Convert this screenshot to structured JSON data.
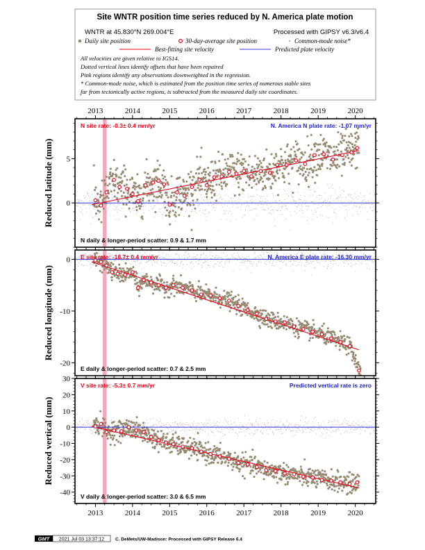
{
  "legend": {
    "title": "Site WNTR position time series reduced by N. America plate motion",
    "site_line": "WNTR at 45.830°N 269.004°E",
    "processing": "Processed with GIPSY v6.3/v6.4",
    "key_daily": "Daily site position",
    "key_avg": "30-day-average site position",
    "key_cmn": "Common-mode noise*",
    "key_fit": "Best-fitting site velocity",
    "key_plate": "Predicted plate velocity",
    "notes": [
      "All velocities are given relative to IGS14.",
      "Dotted vertical lines identify offsets that have been repaired",
      "Pink regions identify any observations downweighted in the regression.",
      "* Common-mode noise, which is estimated from the position time series of numerous stable sites",
      "far from tectonically active regions, is subtracted from the measured daily site coordinates."
    ],
    "colors": {
      "daily": "#978a72",
      "avg": "#e8001a",
      "cmn": "#b4b4b4",
      "fit": "#e8001a",
      "plate": "#3333dd",
      "pink": "#f2a8b8"
    }
  },
  "chart_data": [
    {
      "type": "scatter",
      "panel": "north",
      "ylabel": "Reduced latitude (mm)",
      "xlim": [
        2012.45,
        2020.55
      ],
      "ylim": [
        -5,
        9.5
      ],
      "yticks": [
        0,
        5
      ],
      "top_years": [
        "2013",
        "2014",
        "2015",
        "2016",
        "2017",
        "2018",
        "2019",
        "2020"
      ],
      "site_rate": "N site rate:  -0.3± 0.4 mm/yr",
      "plate_rate": "N. America N plate rate: -1.07 mm/yr",
      "scatter": "N daily & longer-period scatter:   0.9 &   1.7 mm",
      "fit_line": [
        [
          2012.9,
          -0.2
        ],
        [
          2020.1,
          5.9
        ]
      ],
      "plate_line_y": 0,
      "downweighted": [
        2013.2,
        2013.3
      ],
      "averages": [
        [
          2013.0,
          0.3
        ],
        [
          2013.15,
          -0.3
        ],
        [
          2013.3,
          1.2
        ],
        [
          2013.5,
          2.6
        ],
        [
          2013.65,
          1.8
        ],
        [
          2013.85,
          1.6
        ],
        [
          2014.0,
          1.0
        ],
        [
          2014.15,
          0.2
        ],
        [
          2014.35,
          2.0
        ],
        [
          2014.55,
          2.3
        ],
        [
          2014.7,
          2.5
        ],
        [
          2014.85,
          2.1
        ],
        [
          2015.0,
          -0.2
        ],
        [
          2015.2,
          1.2
        ],
        [
          2015.4,
          0.8
        ],
        [
          2015.6,
          1.8
        ],
        [
          2015.8,
          2.6
        ],
        [
          2016.0,
          2.0
        ],
        [
          2016.2,
          2.9
        ],
        [
          2016.4,
          3.0
        ],
        [
          2016.6,
          3.5
        ],
        [
          2016.8,
          3.3
        ],
        [
          2017.0,
          3.6
        ],
        [
          2017.2,
          3.0
        ],
        [
          2017.45,
          3.6
        ],
        [
          2017.7,
          3.4
        ],
        [
          2017.9,
          4.3
        ],
        [
          2018.15,
          4.3
        ],
        [
          2018.4,
          4.8
        ],
        [
          2018.65,
          4.4
        ],
        [
          2018.9,
          5.4
        ],
        [
          2019.15,
          5.5
        ],
        [
          2019.4,
          4.9
        ],
        [
          2019.65,
          5.4
        ],
        [
          2019.9,
          5.7
        ],
        [
          2020.05,
          6.2
        ]
      ],
      "noise_sd": 1.2,
      "cmn_sd": 0.9,
      "cmn_offset": 0
    },
    {
      "type": "scatter",
      "panel": "east",
      "ylabel": "Reduced longitude (mm)",
      "xlim": [
        2012.45,
        2020.55
      ],
      "ylim": [
        -22.5,
        1.8
      ],
      "yticks": [
        0,
        -10,
        -20
      ],
      "site_rate": "E site rate:  -18.7± 0.4 mm/yr",
      "plate_rate": "N. America E plate rate: -16.30 mm/yr",
      "scatter": "E daily & longer-period scatter:   0.7 &   2.5 mm",
      "fit_line": [
        [
          2012.9,
          -0.5
        ],
        [
          2020.1,
          -17.5
        ]
      ],
      "plate_line_y": 0,
      "downweighted": [
        2013.2,
        2013.3
      ],
      "averages": [
        [
          2013.0,
          -0.2
        ],
        [
          2013.15,
          -0.5
        ],
        [
          2013.3,
          -1.2
        ],
        [
          2013.45,
          -2.5
        ],
        [
          2013.6,
          -2.8
        ],
        [
          2013.8,
          -3.0
        ],
        [
          2014.0,
          -2.5
        ],
        [
          2014.15,
          -5.5
        ],
        [
          2014.3,
          -4.0
        ],
        [
          2014.5,
          -4.5
        ],
        [
          2014.7,
          -5.0
        ],
        [
          2014.9,
          -5.5
        ],
        [
          2015.1,
          -5.0
        ],
        [
          2015.35,
          -5.5
        ],
        [
          2015.6,
          -6.0
        ],
        [
          2015.85,
          -6.8
        ],
        [
          2016.1,
          -7.0
        ],
        [
          2016.35,
          -7.5
        ],
        [
          2016.6,
          -8.0
        ],
        [
          2016.85,
          -9.0
        ],
        [
          2017.1,
          -9.8
        ],
        [
          2017.35,
          -10.5
        ],
        [
          2017.6,
          -11.5
        ],
        [
          2017.85,
          -12.0
        ],
        [
          2018.1,
          -12.2
        ],
        [
          2018.35,
          -13.0
        ],
        [
          2018.6,
          -13.5
        ],
        [
          2018.85,
          -14.0
        ],
        [
          2019.1,
          -14.5
        ],
        [
          2019.35,
          -15.3
        ],
        [
          2019.6,
          -16.0
        ],
        [
          2019.85,
          -16.8
        ],
        [
          2020.1,
          -21.5
        ]
      ],
      "noise_sd": 0.8,
      "cmn_sd": 0.8,
      "cmn_offset": 0
    },
    {
      "type": "scatter",
      "panel": "vertical",
      "ylabel": "Reduced vertical (mm)",
      "xlim": [
        2012.45,
        2020.55
      ],
      "ylim": [
        -47,
        30
      ],
      "yticks": [
        30,
        20,
        10,
        0,
        -10,
        -20,
        -30,
        -40
      ],
      "bottom_years": [
        "2013",
        "2014",
        "2015",
        "2016",
        "2017",
        "2018",
        "2019",
        "2020"
      ],
      "site_rate": "V site rate:  -5.3± 0.7 mm/yr",
      "plate_rate": "Predicted vertical rate is zero",
      "scatter": "V daily & longer-period scatter:   3.0 &   6.5 mm",
      "fit_line": [
        [
          2012.9,
          0.5
        ],
        [
          2020.1,
          -37.5
        ]
      ],
      "plate_line_y": 0,
      "downweighted": [
        2013.2,
        2013.3
      ],
      "averages": [
        [
          2013.0,
          0.5
        ],
        [
          2013.15,
          2.0
        ],
        [
          2013.3,
          -3.0
        ],
        [
          2013.5,
          -2.0
        ],
        [
          2013.7,
          -2.5
        ],
        [
          2013.9,
          0.0
        ],
        [
          2014.1,
          -2.0
        ],
        [
          2014.3,
          -3.0
        ],
        [
          2014.5,
          -6.0
        ],
        [
          2014.7,
          -8.0
        ],
        [
          2014.9,
          -9.5
        ],
        [
          2015.1,
          -10.5
        ],
        [
          2015.35,
          -12.0
        ],
        [
          2015.6,
          -13.0
        ],
        [
          2015.85,
          -15.0
        ],
        [
          2016.1,
          -16.5
        ],
        [
          2016.35,
          -18.0
        ],
        [
          2016.6,
          -19.5
        ],
        [
          2016.85,
          -22.0
        ],
        [
          2017.1,
          -23.0
        ],
        [
          2017.35,
          -24.5
        ],
        [
          2017.6,
          -26.5
        ],
        [
          2017.85,
          -27.0
        ],
        [
          2018.1,
          -28.5
        ],
        [
          2018.35,
          -29.0
        ],
        [
          2018.6,
          -30.5
        ],
        [
          2018.85,
          -31.0
        ],
        [
          2019.1,
          -32.5
        ],
        [
          2019.35,
          -33.0
        ],
        [
          2019.6,
          -34.0
        ],
        [
          2019.85,
          -35.0
        ],
        [
          2020.05,
          -34.0
        ]
      ],
      "noise_sd": 3.0,
      "cmn_sd": 2.5,
      "cmn_offset": 0
    }
  ],
  "footer": {
    "logo": "GMT",
    "timestamp": "2021 Jul 03 13:37:12",
    "credit": "C. DeMets/UW-Madison: Processed with GIPSY Release 6.4"
  }
}
